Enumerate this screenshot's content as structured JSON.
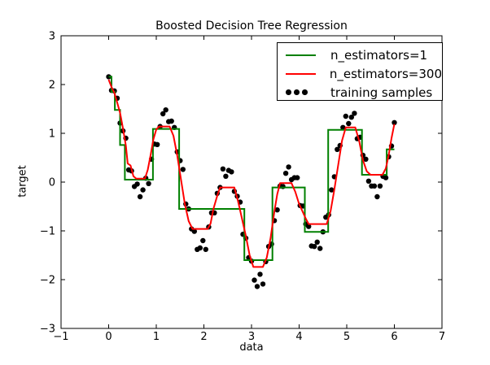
{
  "figure": {
    "title": "Boosted Decision Tree Regression",
    "xlabel": "data",
    "ylabel": "target",
    "background": "#ffffff",
    "frame_color": "#000000",
    "text_color": "#000000"
  },
  "legend": {
    "items": [
      {
        "label": "n_estimators=1",
        "swatch": "line",
        "color": "#008000"
      },
      {
        "label": "n_estimators=300",
        "swatch": "line",
        "color": "#ff0000"
      },
      {
        "label": "training samples",
        "swatch": "dots",
        "color": "#000000"
      }
    ]
  },
  "chart_data": {
    "type": "line",
    "title": "Boosted Decision Tree Regression",
    "xlabel": "data",
    "ylabel": "target",
    "xlim": [
      -1,
      7
    ],
    "ylim": [
      -3,
      3
    ],
    "xticks": [
      -1,
      0,
      1,
      2,
      3,
      4,
      5,
      6,
      7
    ],
    "xtick_labels": [
      "−1",
      "0",
      "1",
      "2",
      "3",
      "4",
      "5",
      "6",
      "7"
    ],
    "yticks": [
      -3,
      -2,
      -1,
      0,
      1,
      2,
      3
    ],
    "ytick_labels": [
      "−3",
      "−2",
      "−1",
      "0",
      "1",
      "2",
      "3"
    ],
    "grid": false,
    "legend_position": "upper right",
    "series": [
      {
        "name": "n_estimators=1",
        "type": "step",
        "color": "#008000",
        "linewidth": 2,
        "steps": [
          {
            "x0": 0.0,
            "x1": 0.06,
            "y": 2.16
          },
          {
            "x0": 0.06,
            "x1": 0.13,
            "y": 1.85
          },
          {
            "x0": 0.13,
            "x1": 0.24,
            "y": 1.48
          },
          {
            "x0": 0.24,
            "x1": 0.34,
            "y": 0.76
          },
          {
            "x0": 0.34,
            "x1": 0.93,
            "y": 0.05
          },
          {
            "x0": 0.93,
            "x1": 1.48,
            "y": 1.09
          },
          {
            "x0": 1.48,
            "x1": 2.85,
            "y": -0.55
          },
          {
            "x0": 2.85,
            "x1": 3.44,
            "y": -1.6
          },
          {
            "x0": 3.44,
            "x1": 4.12,
            "y": -0.11
          },
          {
            "x0": 4.12,
            "x1": 4.61,
            "y": -1.02
          },
          {
            "x0": 4.61,
            "x1": 5.32,
            "y": 1.07
          },
          {
            "x0": 5.32,
            "x1": 5.84,
            "y": 0.15
          },
          {
            "x0": 5.84,
            "x1": 6.0,
            "y": 0.67
          }
        ]
      },
      {
        "name": "n_estimators=300",
        "type": "line",
        "color": "#ff0000",
        "linewidth": 2,
        "x": [
          0.0,
          0.06,
          0.12,
          0.18,
          0.24,
          0.3,
          0.36,
          0.4,
          0.46,
          0.52,
          0.58,
          0.76,
          0.82,
          0.88,
          0.94,
          1.0,
          1.06,
          1.28,
          1.36,
          1.44,
          1.52,
          1.6,
          1.68,
          1.76,
          2.08,
          2.14,
          2.2,
          2.28,
          2.34,
          2.64,
          2.72,
          2.8,
          2.88,
          2.96,
          3.04,
          3.24,
          3.32,
          3.4,
          3.48,
          3.54,
          3.6,
          3.84,
          3.92,
          4.0,
          4.08,
          4.14,
          4.2,
          4.58,
          4.66,
          4.74,
          4.82,
          4.9,
          4.98,
          5.18,
          5.26,
          5.34,
          5.42,
          5.5,
          5.75,
          5.82,
          5.88,
          5.94,
          6.0
        ],
        "y": [
          2.1,
          1.95,
          1.83,
          1.63,
          1.42,
          1.1,
          0.75,
          0.38,
          0.34,
          0.12,
          0.07,
          0.07,
          0.25,
          0.55,
          0.88,
          1.08,
          1.14,
          1.14,
          0.95,
          0.55,
          0.05,
          -0.45,
          -0.8,
          -0.96,
          -0.96,
          -0.85,
          -0.55,
          -0.28,
          -0.11,
          -0.11,
          -0.4,
          -0.75,
          -1.1,
          -1.5,
          -1.74,
          -1.74,
          -1.55,
          -1.15,
          -0.6,
          -0.25,
          -0.02,
          -0.02,
          -0.2,
          -0.45,
          -0.62,
          -0.75,
          -0.86,
          -0.86,
          -0.6,
          -0.15,
          0.35,
          0.85,
          1.12,
          1.12,
          0.85,
          0.45,
          0.22,
          0.15,
          0.15,
          0.28,
          0.55,
          0.9,
          1.19
        ]
      },
      {
        "name": "training samples",
        "type": "scatter",
        "color": "#000000",
        "marker_radius": 3.2,
        "x": [
          0,
          0.06,
          0.12,
          0.18,
          0.24,
          0.3,
          0.36,
          0.42,
          0.48,
          0.54,
          0.6,
          0.66,
          0.72,
          0.78,
          0.84,
          0.9,
          0.96,
          1.02,
          1.08,
          1.14,
          1.2,
          1.26,
          1.32,
          1.38,
          1.44,
          1.5,
          1.56,
          1.62,
          1.68,
          1.74,
          1.8,
          1.86,
          1.92,
          1.98,
          2.04,
          2.1,
          2.16,
          2.22,
          2.28,
          2.34,
          2.4,
          2.46,
          2.52,
          2.58,
          2.64,
          2.7,
          2.76,
          2.82,
          2.88,
          2.94,
          3,
          3.06,
          3.12,
          3.18,
          3.24,
          3.3,
          3.36,
          3.42,
          3.48,
          3.54,
          3.6,
          3.66,
          3.72,
          3.78,
          3.84,
          3.9,
          3.96,
          4.02,
          4.08,
          4.14,
          4.2,
          4.26,
          4.32,
          4.38,
          4.44,
          4.5,
          4.56,
          4.62,
          4.68,
          4.74,
          4.8,
          4.86,
          4.92,
          4.98,
          5.04,
          5.1,
          5.16,
          5.22,
          5.28,
          5.34,
          5.4,
          5.46,
          5.52,
          5.58,
          5.64,
          5.7,
          5.76,
          5.82,
          5.88,
          5.94,
          6
        ],
        "y": [
          2.16,
          1.88,
          1.87,
          1.72,
          1.21,
          1.05,
          0.9,
          0.25,
          0.23,
          -0.09,
          -0.04,
          -0.3,
          -0.16,
          0.08,
          -0.03,
          0.47,
          0.78,
          0.77,
          1.14,
          1.4,
          1.48,
          1.24,
          1.25,
          1.12,
          0.62,
          0.44,
          0.26,
          -0.45,
          -0.55,
          -0.96,
          -1.01,
          -1.38,
          -1.35,
          -1.2,
          -1.38,
          -0.92,
          -0.63,
          -0.63,
          -0.23,
          -0.11,
          0.27,
          0.12,
          0.24,
          0.21,
          -0.19,
          -0.29,
          -0.41,
          -1.07,
          -1.15,
          -1.55,
          -1.62,
          -2.01,
          -2.14,
          -1.89,
          -2.09,
          -1.63,
          -1.32,
          -1.27,
          -0.79,
          -0.57,
          -0.08,
          -0.09,
          0.18,
          0.31,
          0.05,
          0.09,
          0.09,
          -0.48,
          -0.49,
          -0.86,
          -0.91,
          -1.31,
          -1.32,
          -1.23,
          -1.36,
          -1.02,
          -0.72,
          -0.67,
          -0.16,
          0.11,
          0.67,
          0.75,
          1.12,
          1.35,
          1.2,
          1.33,
          1.41,
          0.89,
          0.92,
          0.55,
          0.47,
          0.02,
          -0.08,
          -0.08,
          -0.3,
          -0.08,
          0.12,
          0.09,
          0.52,
          0.74,
          1.22
        ]
      }
    ]
  }
}
